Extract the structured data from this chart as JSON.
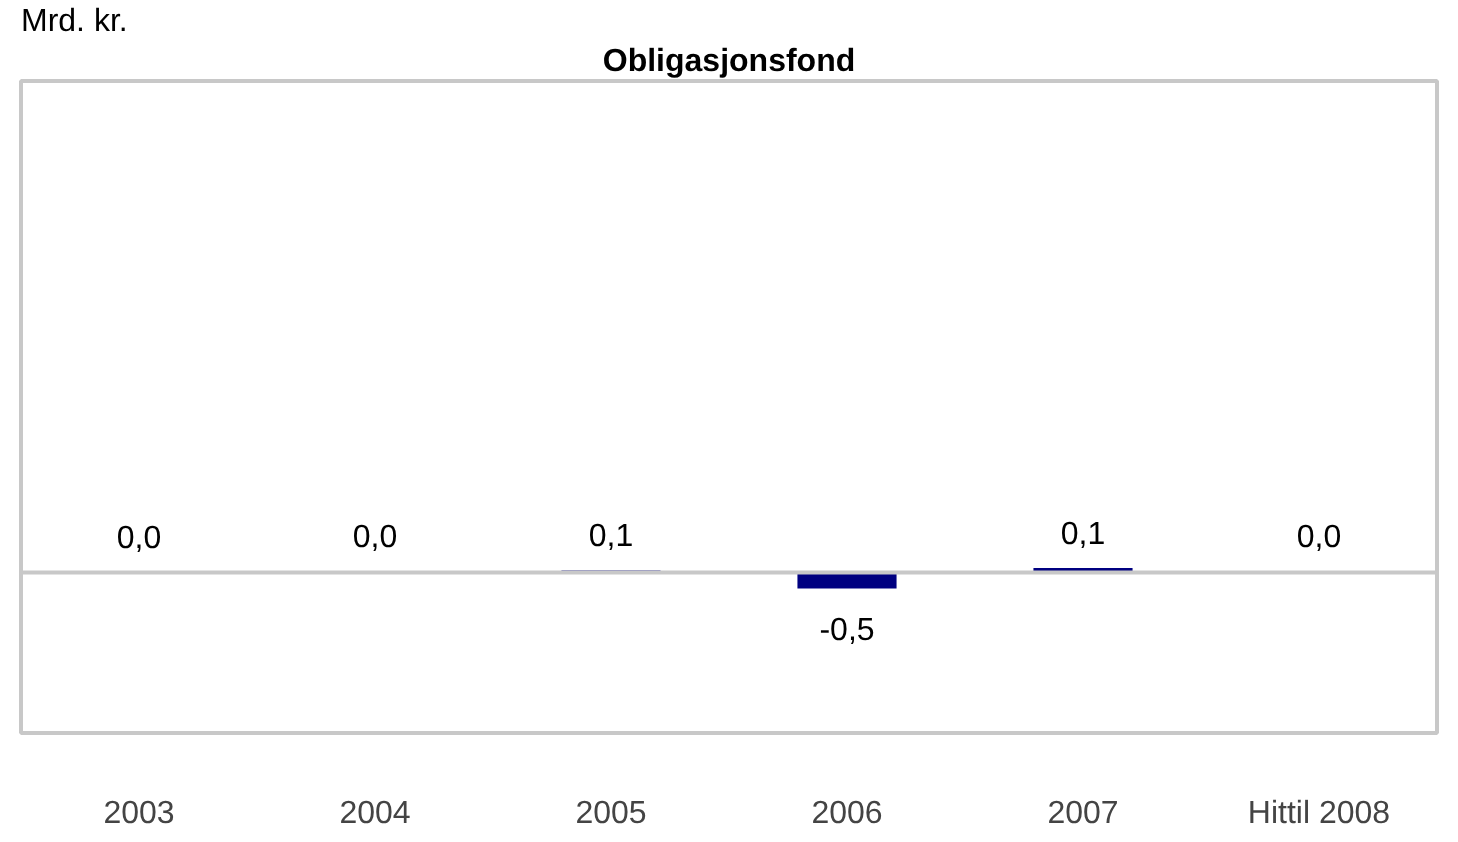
{
  "chart_data": {
    "type": "bar",
    "title": "Obligasjonsfond",
    "ylabel": "Mrd. kr.",
    "categories": [
      "2003",
      "2004",
      "2005",
      "2006",
      "2007",
      "Hittil 2008"
    ],
    "values": [
      0.0,
      0.04,
      0.06,
      -0.5,
      0.14,
      0.04
    ],
    "value_labels": [
      "0,0",
      "0,0",
      "0,1",
      "-0,5",
      "0,1",
      "0,0"
    ],
    "color": "#000080",
    "ylim": [
      -5,
      15.3
    ],
    "tick_labels": "x"
  }
}
